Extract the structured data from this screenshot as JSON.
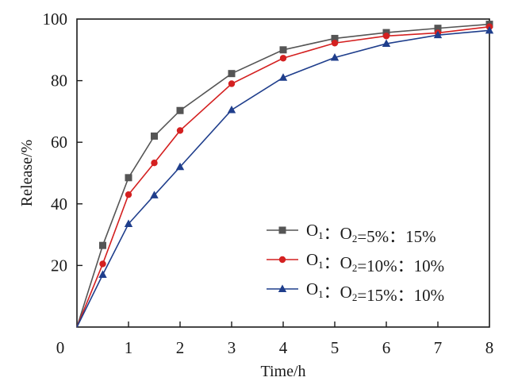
{
  "chart_data": {
    "type": "line",
    "title": "",
    "xlabel": "Time/h",
    "ylabel": "Release/%",
    "xlim": [
      0,
      8
    ],
    "ylim": [
      0,
      100
    ],
    "xticks": [
      "0",
      "1",
      "2",
      "3",
      "4",
      "5",
      "6",
      "7",
      "8"
    ],
    "yticks": [
      "20",
      "40",
      "60",
      "80",
      "100"
    ],
    "x": [
      0,
      0.5,
      1,
      1.5,
      2,
      3,
      4,
      5,
      6,
      7,
      8
    ],
    "grid": false,
    "legend_position": "bottom-right",
    "series": [
      {
        "name": "O1：O2=5%：15%",
        "name_parts": {
          "a": "O",
          "a_sub": "1",
          "sep": "：",
          "b": "O",
          "b_sub": "2",
          "rest": "=5%：15%"
        },
        "marker": "square",
        "color": "#555555",
        "values": [
          0,
          26.5,
          48.5,
          62,
          70.3,
          82.3,
          90,
          93.7,
          95.6,
          97,
          98.3
        ]
      },
      {
        "name": "O1：O2=10%：10%",
        "name_parts": {
          "a": "O",
          "a_sub": "1",
          "sep": "：",
          "b": "O",
          "b_sub": "2",
          "rest": "=10%：10%"
        },
        "marker": "circle",
        "color": "#d42020",
        "values": [
          0,
          20.5,
          43,
          53.3,
          63.8,
          79,
          87.3,
          92.2,
          94.5,
          95.5,
          97.5
        ]
      },
      {
        "name": "O1：O2=15%：10%",
        "name_parts": {
          "a": "O",
          "a_sub": "1",
          "sep": "：",
          "b": "O",
          "b_sub": "2",
          "rest": "=15%：10%"
        },
        "marker": "triangle",
        "color": "#1f3e8c",
        "values": [
          0,
          17,
          33.5,
          42.8,
          52,
          70.5,
          81,
          87.5,
          92,
          94.8,
          96.3
        ]
      }
    ]
  }
}
